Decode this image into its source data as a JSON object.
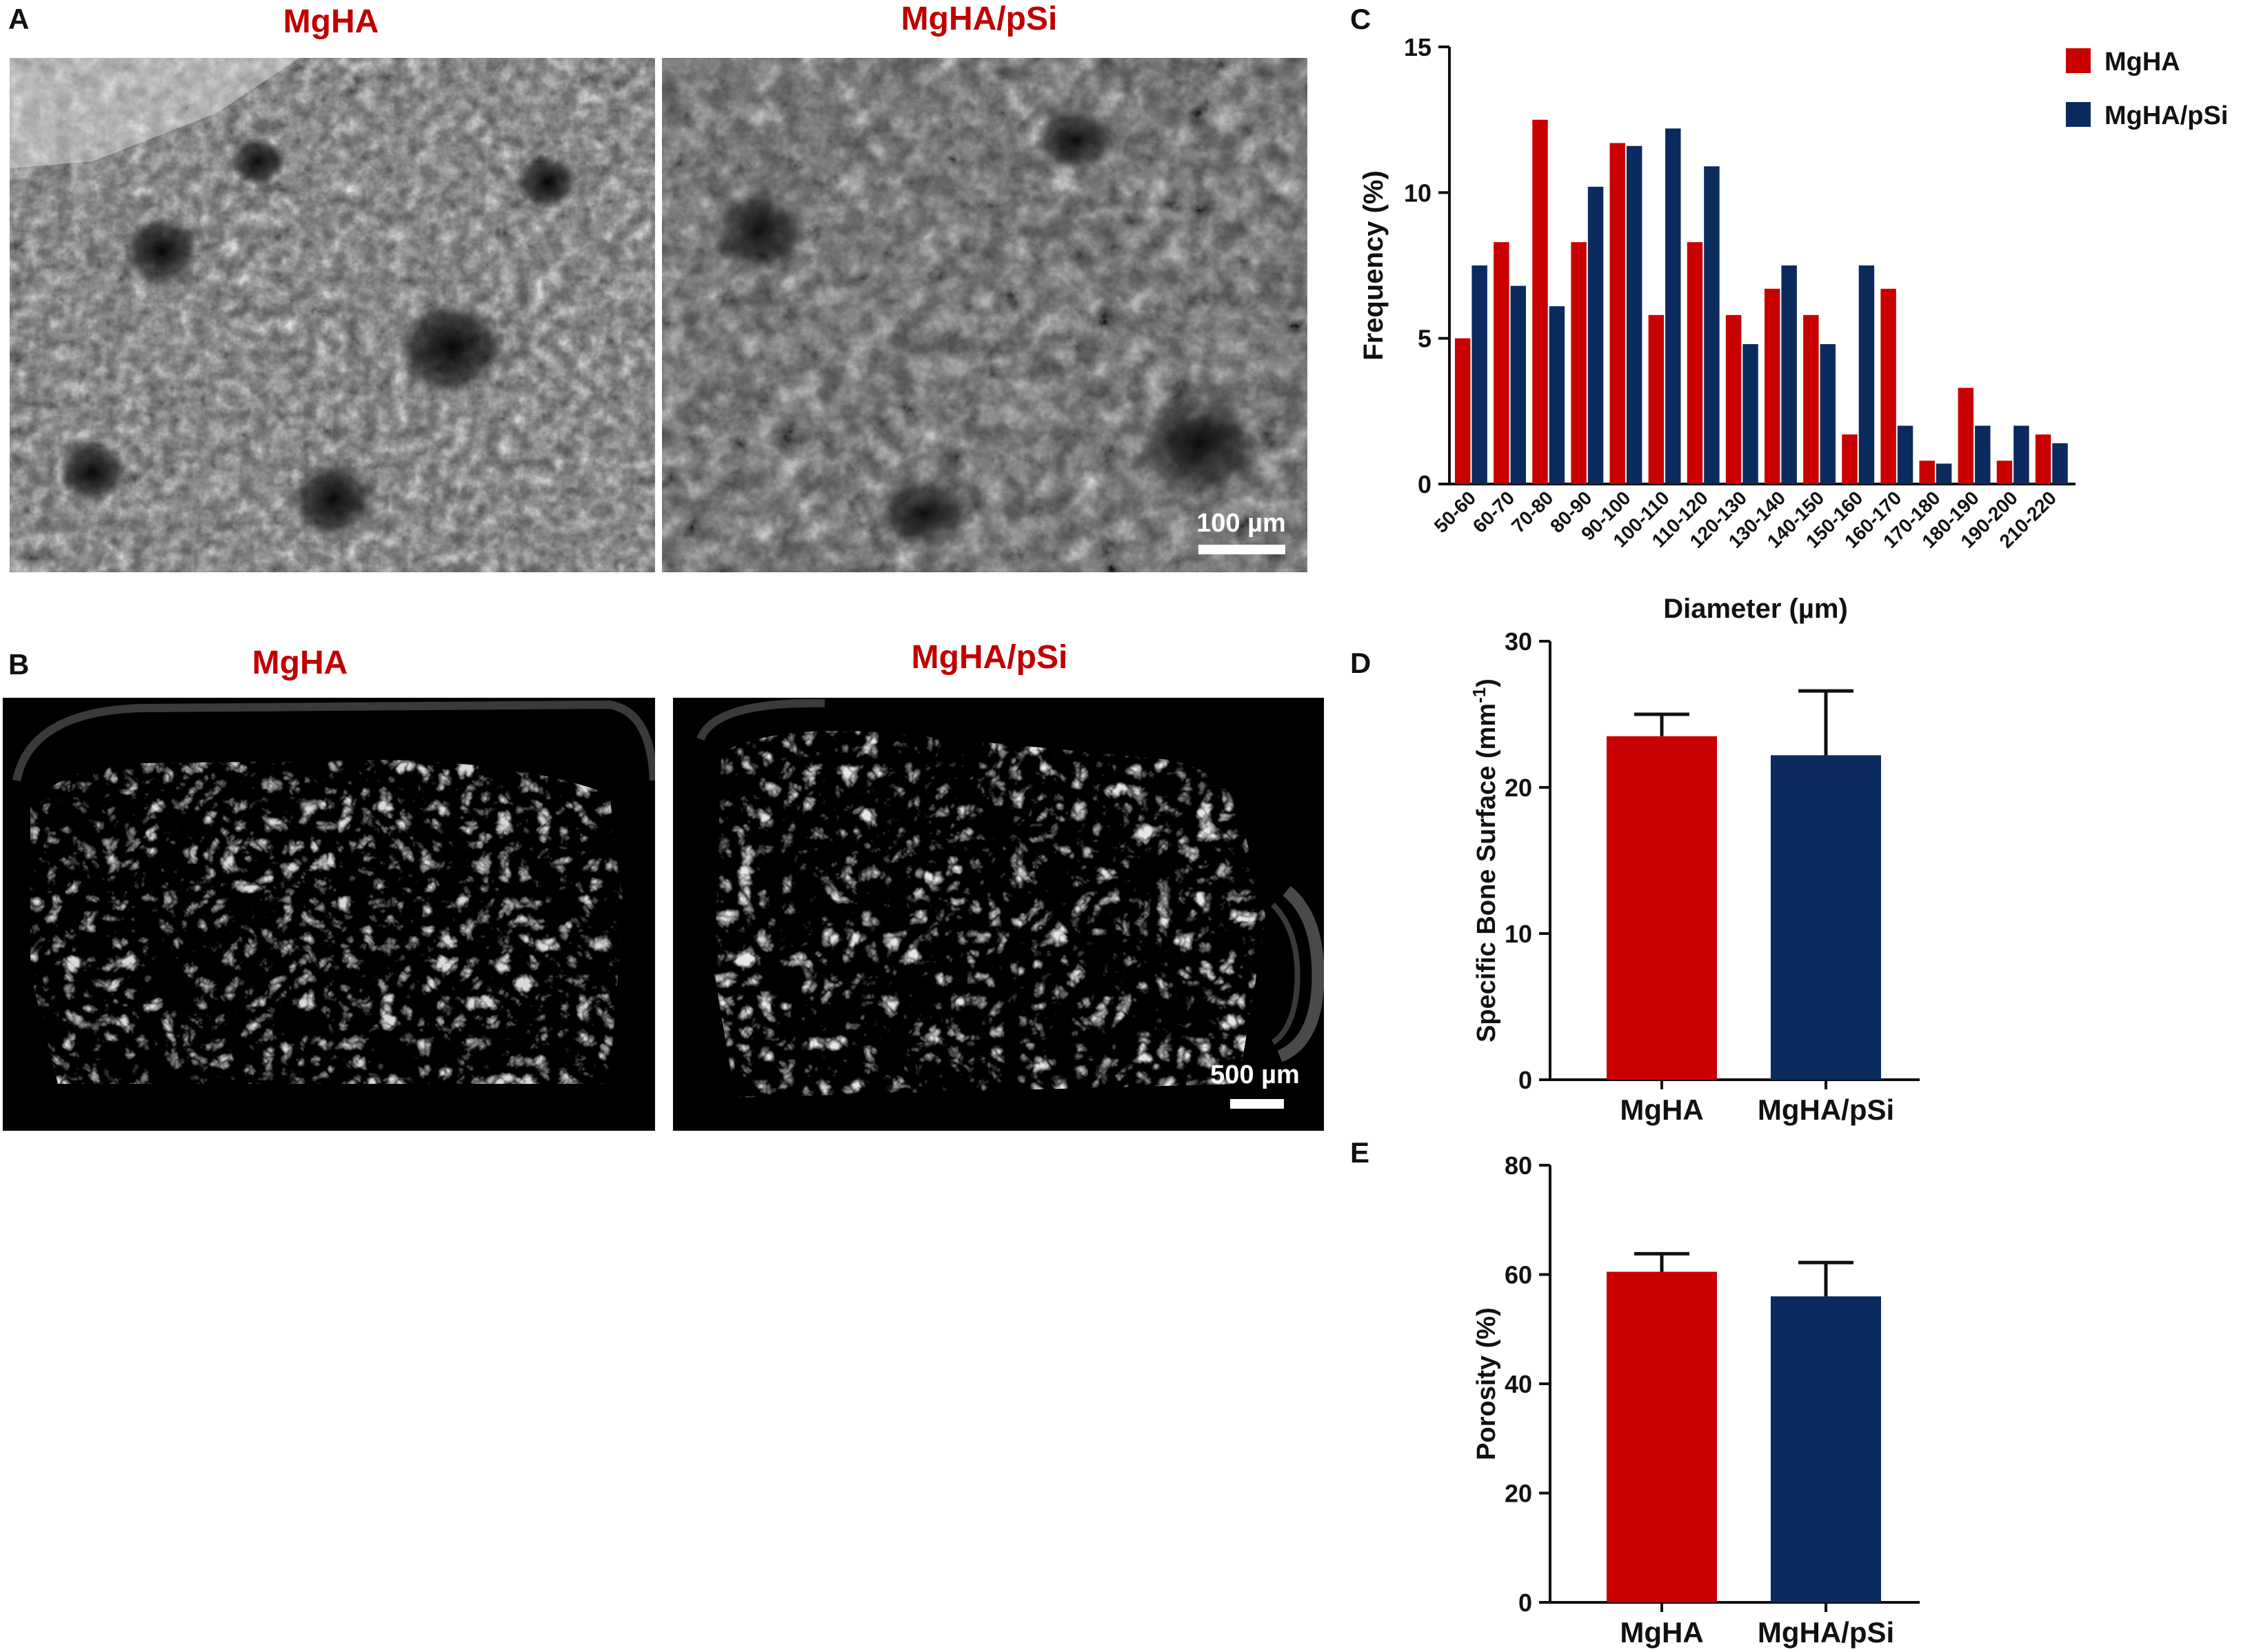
{
  "panels": {
    "A": {
      "letter": "A",
      "left_title": "MgHA",
      "right_title": "MgHA/pSi",
      "scalebar": "100 µm"
    },
    "B": {
      "letter": "B",
      "left_title": "MgHA",
      "right_title": "MgHA/pSi",
      "scalebar": "500 µm"
    },
    "C": {
      "letter": "C"
    },
    "D": {
      "letter": "D"
    },
    "E": {
      "letter": "E"
    }
  },
  "colors": {
    "mgha": "#c90000",
    "mghapsi": "#0b2a5e",
    "title_red": "#c00000"
  },
  "chart_data": [
    {
      "id": "C",
      "type": "bar",
      "xlabel": "Diameter (µm)",
      "ylabel": "Frequency (%)",
      "ylim": [
        0,
        15
      ],
      "yticks": [
        0,
        5,
        10,
        15
      ],
      "legend_position": "top-right",
      "categories": [
        "50-60",
        "60-70",
        "70-80",
        "80-90",
        "90-100",
        "100-110",
        "110-120",
        "120-130",
        "130-140",
        "140-150",
        "150-160",
        "160-170",
        "170-180",
        "180-190",
        "190-200",
        "210-220"
      ],
      "series": [
        {
          "name": "MgHA",
          "color": "#c90000",
          "values": [
            5.0,
            8.3,
            12.5,
            8.3,
            11.7,
            5.8,
            8.3,
            5.8,
            6.7,
            5.8,
            1.7,
            6.7,
            0.8,
            3.3,
            0.8,
            1.7
          ]
        },
        {
          "name": "MgHA/pSi",
          "color": "#0b2a5e",
          "values": [
            7.5,
            6.8,
            6.1,
            10.2,
            11.6,
            12.2,
            10.9,
            4.8,
            7.5,
            4.8,
            7.5,
            2.0,
            0.7,
            2.0,
            2.0,
            1.4
          ]
        }
      ]
    },
    {
      "id": "D",
      "type": "bar",
      "ylabel": "Specific Bone Surface (mm",
      "ylabel_sup": "-1",
      "ylabel_end": ")",
      "ylim": [
        0,
        30
      ],
      "yticks": [
        0,
        10,
        20,
        30
      ],
      "categories": [
        "MgHA",
        "MgHA/pSi"
      ],
      "values": [
        23.5,
        22.2
      ],
      "errors": [
        1.5,
        4.4
      ],
      "colors": [
        "#c90000",
        "#0b2a5e"
      ]
    },
    {
      "id": "E",
      "type": "bar",
      "ylabel": "Porosity (%)",
      "ylim": [
        0,
        80
      ],
      "yticks": [
        0,
        20,
        40,
        60,
        80
      ],
      "categories": [
        "MgHA",
        "MgHA/pSi"
      ],
      "values": [
        60.5,
        56.0
      ],
      "errors": [
        3.3,
        6.2
      ],
      "colors": [
        "#c90000",
        "#0b2a5e"
      ]
    }
  ]
}
